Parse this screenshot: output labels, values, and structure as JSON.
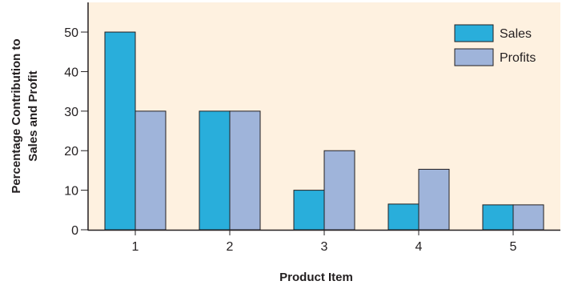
{
  "chart_data": {
    "type": "bar",
    "title": "",
    "xlabel": "Product Item",
    "ylabel_lines": [
      "Percentage Contribution to",
      "Sales and Profit"
    ],
    "categories": [
      "1",
      "2",
      "3",
      "4",
      "5"
    ],
    "series": [
      {
        "name": "Sales",
        "values": [
          50,
          30,
          10,
          6.5,
          6.3
        ],
        "color": "#29aedb"
      },
      {
        "name": "Profits",
        "values": [
          30,
          30,
          20,
          15.3,
          6.3
        ],
        "color": "#9fb4da"
      }
    ],
    "yticks": [
      0,
      10,
      20,
      30,
      40,
      50
    ],
    "ylim": [
      0,
      57.5
    ],
    "grid": false,
    "legend_position": "top-right",
    "plot_background": "#fef1e0",
    "bar_outline": "#231f20"
  }
}
